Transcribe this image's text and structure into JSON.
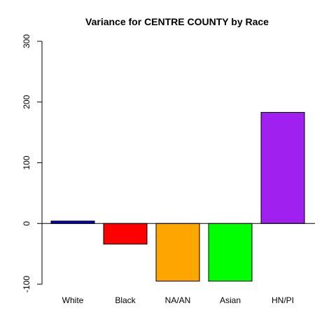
{
  "chart_data": {
    "type": "bar",
    "title": "Variance for CENTRE COUNTY by Race",
    "categories": [
      "White",
      "Black",
      "NA/AN",
      "Asian",
      "HN/PI"
    ],
    "values": [
      4,
      -34,
      -95,
      -95,
      183
    ],
    "colors": [
      "#0000cd",
      "#ff0000",
      "#ffa500",
      "#00ff00",
      "#a020f0"
    ],
    "ylim": [
      -100,
      300
    ],
    "yticks": [
      -100,
      0,
      100,
      200,
      300
    ],
    "xlabel": "",
    "ylabel": "",
    "grid": false,
    "baseline": 0
  }
}
